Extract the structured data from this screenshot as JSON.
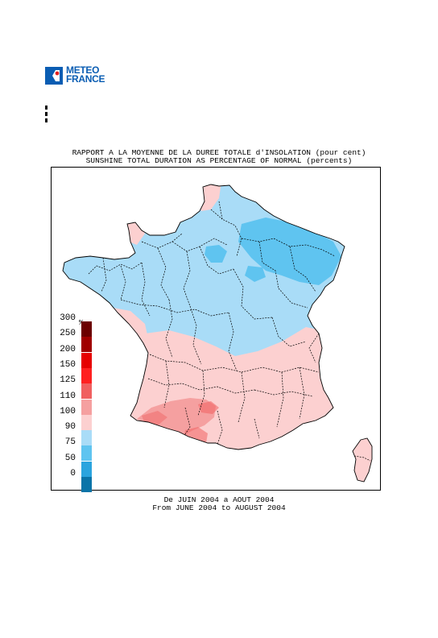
{
  "logo": {
    "line1": "METEO",
    "line2": "FRANCE"
  },
  "title": {
    "line1": "RAPPORT A LA MOYENNE DE LA DUREE TOTALE d'INSOLATION (pour cent)",
    "line2": "SUNSHINE TOTAL DURATION AS PERCENTAGE OF NORMAL (percents)"
  },
  "legend": {
    "unit": "%",
    "labels": [
      "300",
      "250",
      "200",
      "150",
      "125",
      "110",
      "100",
      "90",
      "75",
      "50",
      "0"
    ],
    "colors": [
      "#6b0000",
      "#a00000",
      "#e60000",
      "#ff2020",
      "#f06060",
      "#f5a0a0",
      "#fcd0d0",
      "#a9dcf7",
      "#5fc4f0",
      "#2ba4de",
      "#0a74a8"
    ]
  },
  "colors": {
    "below_normal_light": "#a9dcf7",
    "below_normal": "#5fc4f0",
    "above_normal_light": "#fcd0d0",
    "above_normal": "#f5a0a0",
    "above_normal_strong": "#f06060",
    "logo_blue": "#0a5db3"
  },
  "footer": {
    "line1": "De JUIN 2004 a AOUT 2004",
    "line2": "From JUNE 2004 to AUGUST 2004"
  }
}
